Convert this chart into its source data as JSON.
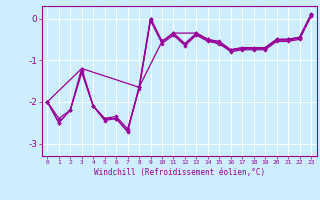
{
  "xlabel": "Windchill (Refroidissement éolien,°C)",
  "ylabel": "",
  "bg_color": "#cceeff",
  "line_color": "#990099",
  "xlim": [
    -0.5,
    23.5
  ],
  "ylim": [
    -3.3,
    0.3
  ],
  "xticks": [
    0,
    1,
    2,
    3,
    4,
    5,
    6,
    7,
    8,
    9,
    10,
    11,
    12,
    13,
    14,
    15,
    16,
    17,
    18,
    19,
    20,
    21,
    22,
    23
  ],
  "yticks": [
    0,
    -1,
    -2,
    -3
  ],
  "series1_x": [
    0,
    1,
    2,
    3,
    4,
    5,
    6,
    7,
    8,
    9,
    10,
    11,
    12,
    13,
    14,
    15,
    16,
    17,
    18,
    19,
    20,
    21,
    22,
    23
  ],
  "series1_y": [
    -2.0,
    -2.5,
    -2.2,
    -1.2,
    -2.1,
    -2.4,
    -2.4,
    -2.7,
    -1.65,
    0.0,
    -0.55,
    -0.35,
    -0.6,
    -0.35,
    -0.5,
    -0.55,
    -0.75,
    -0.7,
    -0.7,
    -0.7,
    -0.5,
    -0.5,
    -0.45,
    0.1
  ],
  "series2_x": [
    0,
    1,
    2,
    3,
    4,
    5,
    6,
    7,
    8,
    9,
    10,
    11,
    12,
    13,
    14,
    15,
    16,
    17,
    18,
    19,
    20,
    21,
    22,
    23
  ],
  "series2_y": [
    -2.0,
    -2.4,
    -2.2,
    -1.3,
    -2.1,
    -2.4,
    -2.35,
    -2.65,
    -1.7,
    -0.05,
    -0.6,
    -0.4,
    -0.65,
    -0.4,
    -0.55,
    -0.6,
    -0.8,
    -0.75,
    -0.75,
    -0.75,
    -0.55,
    -0.55,
    -0.5,
    0.05
  ],
  "series3_x": [
    0,
    3,
    8,
    10,
    11,
    13,
    14,
    16,
    17,
    18,
    19,
    20,
    21,
    22,
    23
  ],
  "series3_y": [
    -2.0,
    -1.2,
    -1.65,
    -0.55,
    -0.35,
    -0.35,
    -0.5,
    -0.75,
    -0.7,
    -0.7,
    -0.7,
    -0.5,
    -0.5,
    -0.45,
    0.1
  ],
  "series4_x": [
    0,
    1,
    2,
    3,
    4,
    5,
    6,
    7,
    8,
    9,
    10,
    11,
    12,
    13,
    14,
    15,
    16,
    17,
    18,
    19,
    20,
    21,
    22,
    23
  ],
  "series4_y": [
    -2.0,
    -2.5,
    -2.2,
    -1.25,
    -2.1,
    -2.45,
    -2.4,
    -2.72,
    -1.65,
    0.0,
    -0.55,
    -0.37,
    -0.62,
    -0.37,
    -0.52,
    -0.57,
    -0.77,
    -0.72,
    -0.72,
    -0.72,
    -0.52,
    -0.52,
    -0.47,
    0.08
  ]
}
